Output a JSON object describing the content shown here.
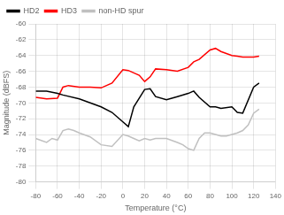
{
  "chart_data": {
    "type": "line",
    "xlabel": "Temperature (°C)",
    "ylabel": "Magnitude (dBFS)",
    "xlim": [
      -80,
      140
    ],
    "ylim": [
      -80,
      -60
    ],
    "xticks": [
      -80,
      -60,
      -40,
      -20,
      0,
      20,
      40,
      60,
      80,
      100,
      120,
      140
    ],
    "yticks": [
      -80,
      -78,
      -76,
      -74,
      -72,
      -70,
      -68,
      -66,
      -64,
      -62,
      -60
    ],
    "grid": true,
    "legend": "upper left",
    "series": [
      {
        "name": "HD2",
        "color": "#000000",
        "x": [
          -80,
          -70,
          -60,
          -55,
          -40,
          -30,
          -20,
          -10,
          0,
          5,
          10,
          20,
          25,
          30,
          40,
          50,
          60,
          65,
          70,
          80,
          85,
          90,
          100,
          105,
          110,
          120,
          125
        ],
        "values": [
          -68.5,
          -68.5,
          -68.8,
          -69.0,
          -69.5,
          -70.0,
          -70.5,
          -71.2,
          -72.4,
          -73.0,
          -70.5,
          -68.3,
          -68.2,
          -69.2,
          -69.6,
          -69.2,
          -68.8,
          -68.5,
          -69.3,
          -70.5,
          -70.5,
          -70.7,
          -70.5,
          -71.2,
          -71.3,
          -68.0,
          -67.5
        ]
      },
      {
        "name": "HD3",
        "color": "#ff0000",
        "x": [
          -80,
          -70,
          -60,
          -55,
          -50,
          -40,
          -30,
          -20,
          -10,
          0,
          5,
          10,
          15,
          20,
          25,
          30,
          40,
          50,
          60,
          65,
          70,
          80,
          85,
          90,
          100,
          105,
          110,
          120,
          125
        ],
        "values": [
          -69.3,
          -69.5,
          -69.4,
          -68.0,
          -67.8,
          -68.0,
          -68.0,
          -68.1,
          -67.5,
          -65.8,
          -65.9,
          -66.2,
          -66.5,
          -67.3,
          -66.7,
          -65.7,
          -65.8,
          -66.0,
          -65.5,
          -64.8,
          -64.5,
          -63.3,
          -63.1,
          -63.5,
          -64.0,
          -64.1,
          -64.2,
          -64.2,
          -64.1
        ]
      },
      {
        "name": "non-HD spur",
        "color": "#c0c0c0",
        "x": [
          -80,
          -70,
          -65,
          -60,
          -55,
          -50,
          -45,
          -40,
          -30,
          -20,
          -10,
          0,
          5,
          10,
          15,
          20,
          25,
          30,
          40,
          50,
          55,
          60,
          65,
          70,
          75,
          80,
          85,
          90,
          95,
          100,
          105,
          110,
          115,
          120,
          125
        ],
        "values": [
          -74.5,
          -75.0,
          -74.5,
          -74.7,
          -73.5,
          -73.3,
          -73.5,
          -73.8,
          -74.3,
          -75.3,
          -75.5,
          -74.0,
          -74.2,
          -74.5,
          -74.8,
          -74.5,
          -74.7,
          -74.5,
          -74.5,
          -75.0,
          -75.3,
          -75.8,
          -76.0,
          -74.5,
          -73.8,
          -73.8,
          -74.0,
          -74.2,
          -74.2,
          -74.0,
          -73.8,
          -73.5,
          -72.8,
          -71.3,
          -70.8
        ]
      }
    ]
  }
}
